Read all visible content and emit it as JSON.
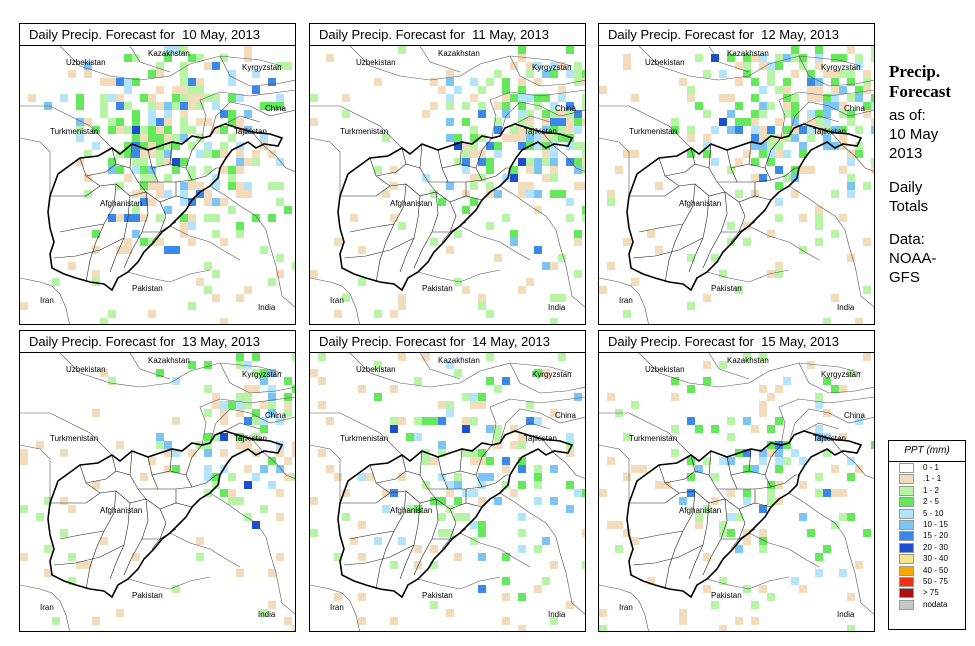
{
  "panels": [
    {
      "title": "Daily Precip. Forecast for  10 May, 2013",
      "seed": 11,
      "density": 0.95,
      "focus": "central"
    },
    {
      "title": "Daily Precip. Forecast for  11 May, 2013",
      "seed": 23,
      "density": 0.8,
      "focus": "east"
    },
    {
      "title": "Daily Precip. Forecast for  12 May, 2013",
      "seed": 37,
      "density": 0.85,
      "focus": "north"
    },
    {
      "title": "Daily Precip. Forecast for  13 May, 2013",
      "seed": 41,
      "density": 0.6,
      "focus": "northeast"
    },
    {
      "title": "Daily Precip. Forecast for  14 May, 2013",
      "seed": 53,
      "density": 0.45,
      "focus": "scatter"
    },
    {
      "title": "Daily Precip. Forecast for  15 May, 2013",
      "seed": 67,
      "density": 0.35,
      "focus": "scatter"
    }
  ],
  "country_labels": {
    "uzbekistan": "Uzbekistan",
    "kazakhstan": "Kazakhstan",
    "kyrgyzstan": "Kyrgyzstan",
    "china": "China",
    "turkmenistan": "Turkmenistan",
    "tajikistan": "Tajikistan",
    "afghanistan": "Afghanistan",
    "iran": "Iran",
    "pakistan": "Pakistan",
    "india": "India"
  },
  "side": {
    "title_line1": "Precip.",
    "title_line2": "Forecast",
    "asof_line1": "as of:",
    "asof_line2": "10 May",
    "asof_line3": "2013",
    "totals_line1": "Daily",
    "totals_line2": "Totals",
    "data_line1": "Data:",
    "data_line2": "NOAA-",
    "data_line3": "GFS"
  },
  "legend": {
    "title": "PPT (mm)",
    "items": [
      {
        "label": "0 - 1",
        "color": "#ffffff"
      },
      {
        "label": ".1 - 1",
        "color": "#f3dcbc"
      },
      {
        "label": "1 - 2",
        "color": "#b7f4a6"
      },
      {
        "label": "2 - 5",
        "color": "#66e85c"
      },
      {
        "label": "5 - 10",
        "color": "#b4e4fb"
      },
      {
        "label": "10 - 15",
        "color": "#7cc4f4"
      },
      {
        "label": "15 - 20",
        "color": "#3c88e8"
      },
      {
        "label": "20 - 30",
        "color": "#1c4fd0"
      },
      {
        "label": "30 - 40",
        "color": "#f8e28c"
      },
      {
        "label": "40 - 50",
        "color": "#f8a800"
      },
      {
        "label": "50 - 75",
        "color": "#f03010"
      },
      {
        "label": "> 75",
        "color": "#a81010"
      },
      {
        "label": "nodata",
        "color": "#c8c8c8"
      }
    ]
  }
}
